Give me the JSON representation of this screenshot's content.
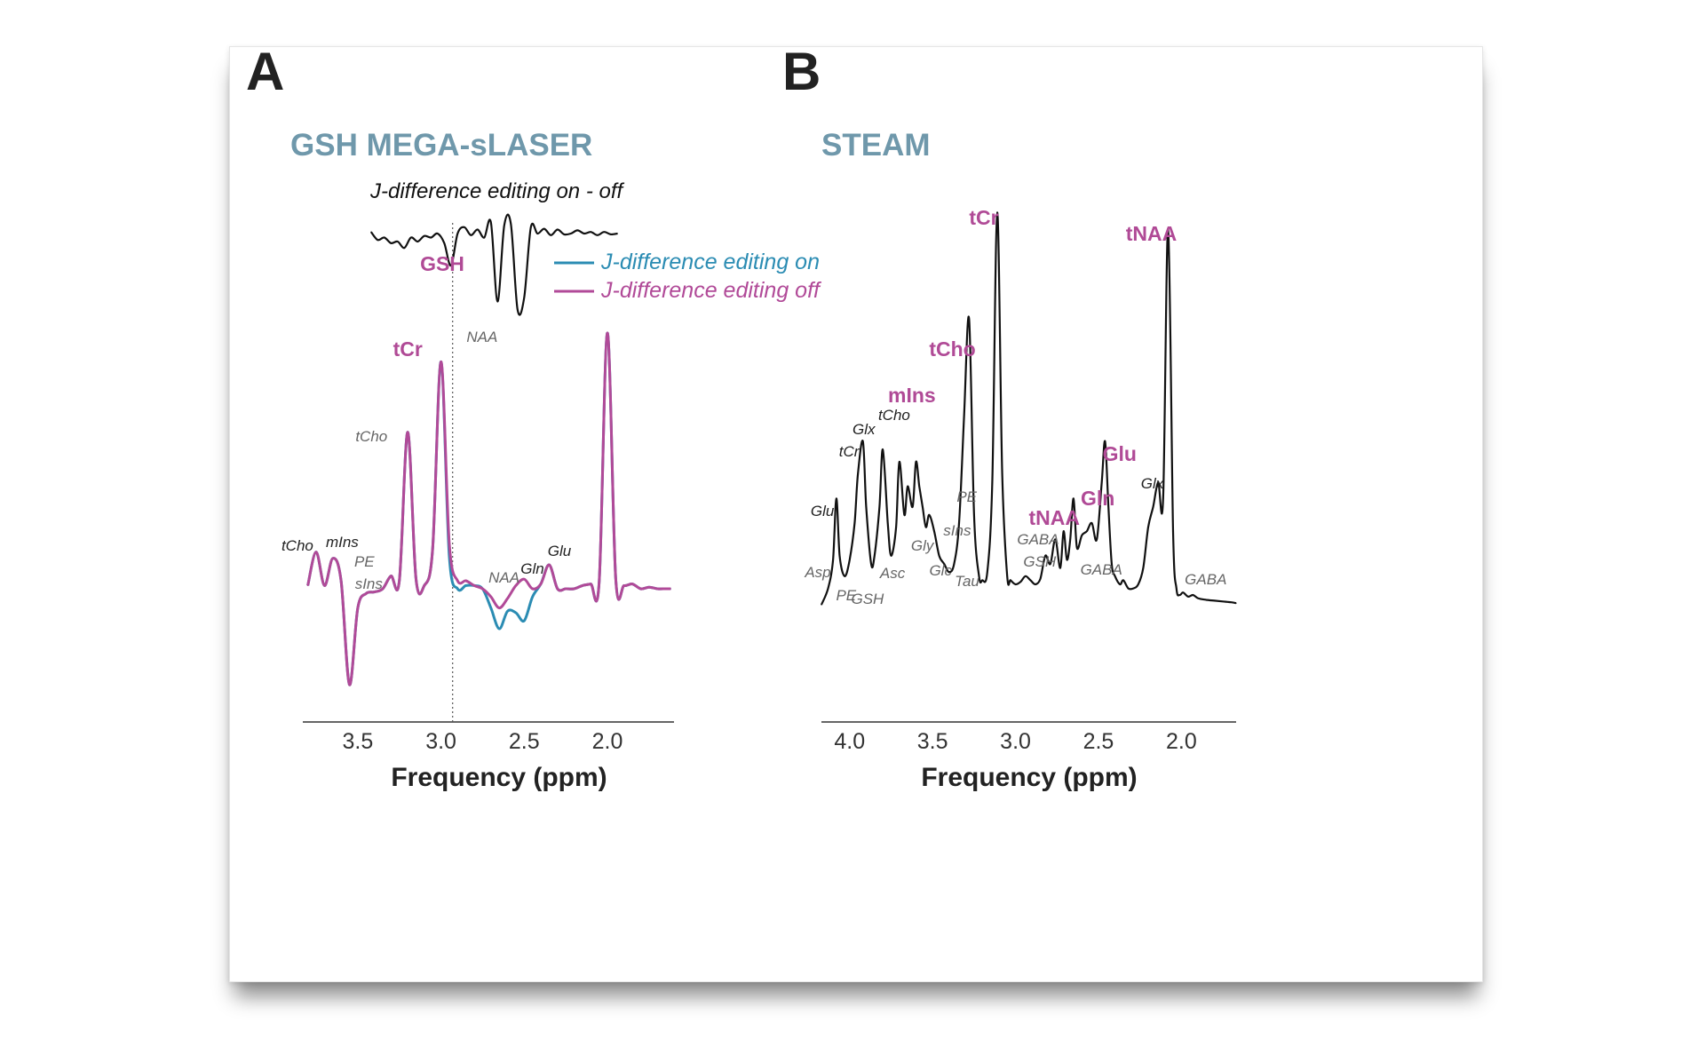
{
  "colors": {
    "on": "#2b8cb3",
    "off": "#b14a98",
    "black": "#111111",
    "title": "#6f98ab",
    "accent": "#b04a96"
  },
  "chart_data": [
    {
      "type": "line",
      "panel_label": "A",
      "title": "GSH MEGA-sLASER",
      "xlabel": "Frequency (ppm)",
      "ylabel": "",
      "xlim": [
        3.83,
        1.6
      ],
      "x_reversed": true,
      "xticks": [
        3.5,
        3.0,
        2.5,
        2.0
      ],
      "xtick_labels": [
        "3.5",
        "3.0",
        "2.5",
        "2.0"
      ],
      "grid": false,
      "legend": {
        "position": "top-right",
        "entries": [
          "J-difference editing on",
          "J-difference editing off"
        ]
      },
      "diff_title": "J-difference editing on - off",
      "reference_line_ppm": 2.93,
      "series": [
        {
          "name": "J-difference editing on",
          "color": "#2b8cb3",
          "x": [
            3.8,
            3.75,
            3.7,
            3.65,
            3.6,
            3.55,
            3.5,
            3.45,
            3.4,
            3.35,
            3.3,
            3.25,
            3.2,
            3.15,
            3.1,
            3.05,
            3.0,
            2.95,
            2.9,
            2.85,
            2.8,
            2.75,
            2.7,
            2.65,
            2.6,
            2.55,
            2.5,
            2.45,
            2.4,
            2.35,
            2.3,
            2.25,
            2.2,
            2.15,
            2.1,
            2.05,
            2.0,
            1.95,
            1.9,
            1.85,
            1.8,
            1.75,
            1.7,
            1.65,
            1.62
          ],
          "y": [
            0.02,
            0.23,
            0.02,
            0.19,
            0.05,
            -0.6,
            -0.12,
            -0.03,
            -0.02,
            0.0,
            0.08,
            0.05,
            0.98,
            0.06,
            0.02,
            0.25,
            1.42,
            0.2,
            0.0,
            0.02,
            0.02,
            0.0,
            -0.12,
            -0.25,
            -0.14,
            -0.15,
            -0.2,
            -0.05,
            0.03,
            0.15,
            0.0,
            0.0,
            0.0,
            0.02,
            0.03,
            0.04,
            1.6,
            0.06,
            0.02,
            0.03,
            0.0,
            0.01,
            0.0,
            0.0,
            0.0
          ]
        },
        {
          "name": "J-difference editing off",
          "color": "#b14a98",
          "x": [
            3.8,
            3.75,
            3.7,
            3.65,
            3.6,
            3.55,
            3.5,
            3.45,
            3.4,
            3.35,
            3.3,
            3.25,
            3.2,
            3.15,
            3.1,
            3.05,
            3.0,
            2.95,
            2.9,
            2.85,
            2.8,
            2.75,
            2.7,
            2.65,
            2.6,
            2.55,
            2.5,
            2.45,
            2.4,
            2.35,
            2.3,
            2.25,
            2.2,
            2.15,
            2.1,
            2.05,
            2.0,
            1.95,
            1.9,
            1.85,
            1.8,
            1.75,
            1.7,
            1.65,
            1.62
          ],
          "y": [
            0.02,
            0.23,
            0.02,
            0.19,
            0.05,
            -0.6,
            -0.12,
            -0.03,
            -0.02,
            0.0,
            0.08,
            0.05,
            0.98,
            0.06,
            0.02,
            0.25,
            1.42,
            0.28,
            0.05,
            0.05,
            0.02,
            0.0,
            -0.05,
            -0.12,
            -0.06,
            0.02,
            0.06,
            0.0,
            0.03,
            0.15,
            0.0,
            0.0,
            0.0,
            0.02,
            0.03,
            0.04,
            1.6,
            0.06,
            0.02,
            0.03,
            0.0,
            0.01,
            0.0,
            0.0,
            0.0
          ]
        },
        {
          "name": "J-difference editing on - off",
          "color": "#111111",
          "x": [
            3.42,
            3.38,
            3.34,
            3.3,
            3.26,
            3.22,
            3.18,
            3.14,
            3.1,
            3.06,
            3.02,
            2.98,
            2.94,
            2.9,
            2.86,
            2.82,
            2.78,
            2.74,
            2.7,
            2.66,
            2.62,
            2.58,
            2.54,
            2.5,
            2.46,
            2.42,
            2.38,
            2.34,
            2.3,
            2.26,
            2.22,
            2.18,
            2.14,
            2.1,
            2.06,
            2.02,
            1.98,
            1.94
          ],
          "y": [
            0.02,
            -0.08,
            -0.05,
            -0.12,
            -0.1,
            -0.18,
            -0.05,
            -0.1,
            -0.03,
            -0.05,
            0.0,
            -0.12,
            -0.4,
            0.0,
            0.08,
            -0.02,
            0.05,
            -0.05,
            0.14,
            -0.85,
            0.1,
            0.12,
            -0.95,
            -0.8,
            0.08,
            0.0,
            0.06,
            -0.02,
            0.05,
            -0.01,
            0.0,
            0.04,
            0.0,
            0.02,
            -0.02,
            0.02,
            -0.01,
            0.0
          ]
        }
      ],
      "annotations": [
        {
          "text": "GSH",
          "ppm": 2.95,
          "style": "bold"
        },
        {
          "text": "NAA",
          "ppm": 2.71,
          "style": "gray"
        },
        {
          "text": "tCr",
          "ppm": 3.05,
          "style": "bold"
        },
        {
          "text": "tCho",
          "ppm": 3.3,
          "style": "gray"
        },
        {
          "text": "tCho",
          "ppm": 3.82,
          "style": "black"
        },
        {
          "text": "mIns",
          "ppm": 3.54,
          "style": "black"
        },
        {
          "text": "PE",
          "ppm": 3.3,
          "style": "gray"
        },
        {
          "text": "sIns",
          "ppm": 3.38,
          "style": "gray"
        },
        {
          "text": "NAA",
          "ppm": 2.6,
          "style": "gray"
        },
        {
          "text": "Gln",
          "ppm": 2.44,
          "style": "black"
        },
        {
          "text": "Glu",
          "ppm": 2.32,
          "style": "black"
        }
      ]
    },
    {
      "type": "line",
      "panel_label": "B",
      "title": "STEAM",
      "xlabel": "Frequency (ppm)",
      "ylabel": "",
      "xlim": [
        4.17,
        1.67
      ],
      "x_reversed": true,
      "xticks": [
        4.0,
        3.5,
        3.0,
        2.5,
        2.0
      ],
      "xtick_labels": [
        "4.0",
        "3.5",
        "3.0",
        "2.5",
        "2.0"
      ],
      "grid": false,
      "series": [
        {
          "name": "",
          "color": "#111111",
          "x": [
            4.17,
            4.13,
            4.1,
            4.08,
            4.06,
            4.03,
            4.0,
            3.97,
            3.95,
            3.92,
            3.9,
            3.87,
            3.85,
            3.82,
            3.8,
            3.77,
            3.75,
            3.72,
            3.7,
            3.67,
            3.65,
            3.62,
            3.6,
            3.58,
            3.56,
            3.54,
            3.52,
            3.49,
            3.46,
            3.43,
            3.4,
            3.37,
            3.34,
            3.31,
            3.28,
            3.25,
            3.22,
            3.2,
            3.17,
            3.14,
            3.11,
            3.08,
            3.05,
            3.03,
            3.0,
            2.97,
            2.94,
            2.91,
            2.88,
            2.85,
            2.82,
            2.79,
            2.76,
            2.73,
            2.71,
            2.69,
            2.67,
            2.65,
            2.63,
            2.6,
            2.57,
            2.54,
            2.51,
            2.48,
            2.46,
            2.44,
            2.42,
            2.4,
            2.37,
            2.35,
            2.32,
            2.29,
            2.26,
            2.23,
            2.2,
            2.17,
            2.14,
            2.11,
            2.08,
            2.05,
            2.03,
            2.01,
            1.99,
            1.96,
            1.93,
            1.9,
            1.85,
            1.8,
            1.75,
            1.7,
            1.67
          ],
          "y": [
            0.0,
            0.2,
            0.55,
            1.3,
            0.6,
            0.35,
            0.55,
            1.0,
            1.6,
            2.0,
            1.2,
            0.5,
            0.6,
            1.2,
            1.9,
            1.0,
            0.6,
            0.95,
            1.75,
            1.1,
            1.45,
            1.2,
            1.75,
            1.45,
            1.2,
            0.95,
            1.1,
            0.9,
            0.6,
            0.5,
            0.4,
            0.5,
            1.0,
            2.3,
            3.5,
            1.1,
            0.35,
            0.3,
            0.4,
            1.5,
            4.8,
            1.6,
            0.35,
            0.3,
            0.25,
            0.28,
            0.35,
            0.3,
            0.25,
            0.32,
            0.6,
            0.5,
            0.8,
            0.45,
            0.9,
            0.55,
            0.8,
            1.3,
            0.7,
            0.85,
            0.9,
            1.0,
            0.8,
            1.5,
            2.0,
            1.2,
            0.5,
            0.35,
            0.25,
            0.3,
            0.2,
            0.2,
            0.25,
            0.45,
            0.95,
            1.2,
            1.5,
            1.3,
            4.6,
            0.9,
            0.2,
            0.12,
            0.15,
            0.1,
            0.12,
            0.08,
            0.06,
            0.05,
            0.04,
            0.03,
            0.02
          ]
        }
      ],
      "annotations": [
        {
          "text": "tCr",
          "ppm": 3.03,
          "style": "bold"
        },
        {
          "text": "tNAA",
          "ppm": 2.01,
          "style": "bold"
        },
        {
          "text": "tCho",
          "ppm": 3.22,
          "style": "bold"
        },
        {
          "text": "mIns",
          "ppm": 3.56,
          "style": "bold"
        },
        {
          "text": "Glu",
          "ppm": 2.34,
          "style": "bold"
        },
        {
          "text": "Gln",
          "ppm": 2.44,
          "style": "bold"
        },
        {
          "text": "tNAA",
          "ppm": 2.67,
          "style": "bold"
        },
        {
          "text": "tCho",
          "ppm": 3.71,
          "style": "black"
        },
        {
          "text": "Glx",
          "ppm": 3.85,
          "style": "black"
        },
        {
          "text": "tCr",
          "ppm": 3.95,
          "style": "black"
        },
        {
          "text": "Glu",
          "ppm": 4.1,
          "style": "black"
        },
        {
          "text": "Glx",
          "ppm": 2.09,
          "style": "black"
        },
        {
          "text": "Asp",
          "ppm": 4.17,
          "style": "gray"
        },
        {
          "text": "PE",
          "ppm": 4.0,
          "style": "gray"
        },
        {
          "text": "GSH",
          "ppm": 3.86,
          "style": "gray"
        },
        {
          "text": "Asc",
          "ppm": 3.72,
          "style": "gray"
        },
        {
          "text": "Gly",
          "ppm": 3.53,
          "style": "gray"
        },
        {
          "text": "Glc",
          "ppm": 3.43,
          "style": "gray"
        },
        {
          "text": "PE",
          "ppm": 3.24,
          "style": "gray"
        },
        {
          "text": "sIns",
          "ppm": 3.33,
          "style": "gray"
        },
        {
          "text": "Tau",
          "ppm": 3.26,
          "style": "gray"
        },
        {
          "text": "GABA",
          "ppm": 2.81,
          "style": "gray"
        },
        {
          "text": "GSH",
          "ppm": 2.79,
          "style": "gray"
        },
        {
          "text": "GABA",
          "ppm": 2.44,
          "style": "gray"
        },
        {
          "text": "GABA",
          "ppm": 1.81,
          "style": "gray"
        }
      ]
    }
  ]
}
